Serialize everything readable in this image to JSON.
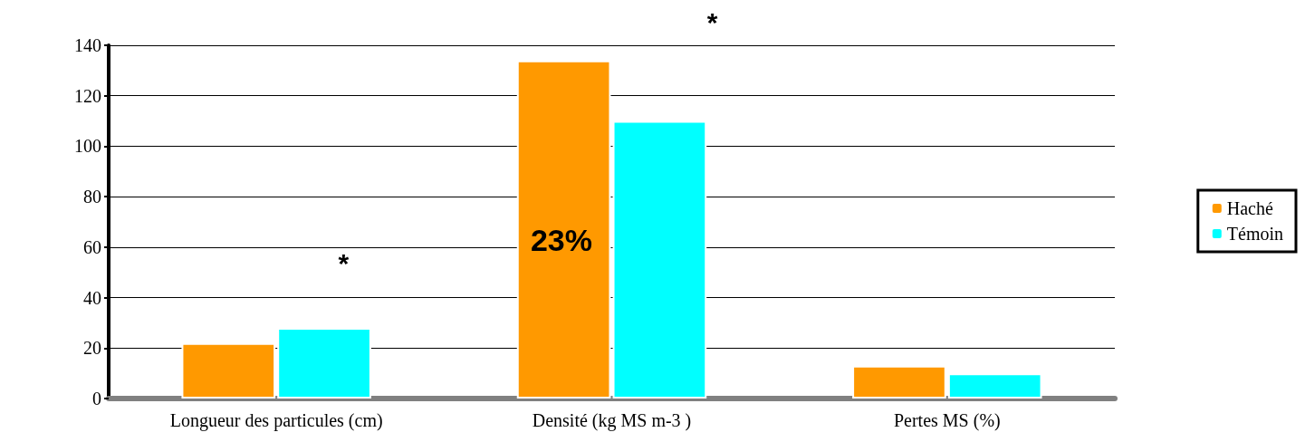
{
  "chart_data": {
    "type": "bar",
    "categories": [
      "Longueur des particules (cm)",
      "Densité (kg MS m-3 )",
      "Pertes MS (%)"
    ],
    "series": [
      {
        "name": "Haché",
        "color": "#ff9900",
        "values": [
          22,
          134,
          13
        ]
      },
      {
        "name": "Témoin",
        "color": "#00ffff",
        "values": [
          28,
          110,
          10
        ]
      }
    ],
    "ylim": [
      0,
      140
    ],
    "yticks": [
      0,
      20,
      40,
      60,
      80,
      100,
      120,
      140
    ],
    "grid": "y",
    "legend": "right",
    "annotations": [
      "*",
      "*",
      "23%"
    ]
  }
}
